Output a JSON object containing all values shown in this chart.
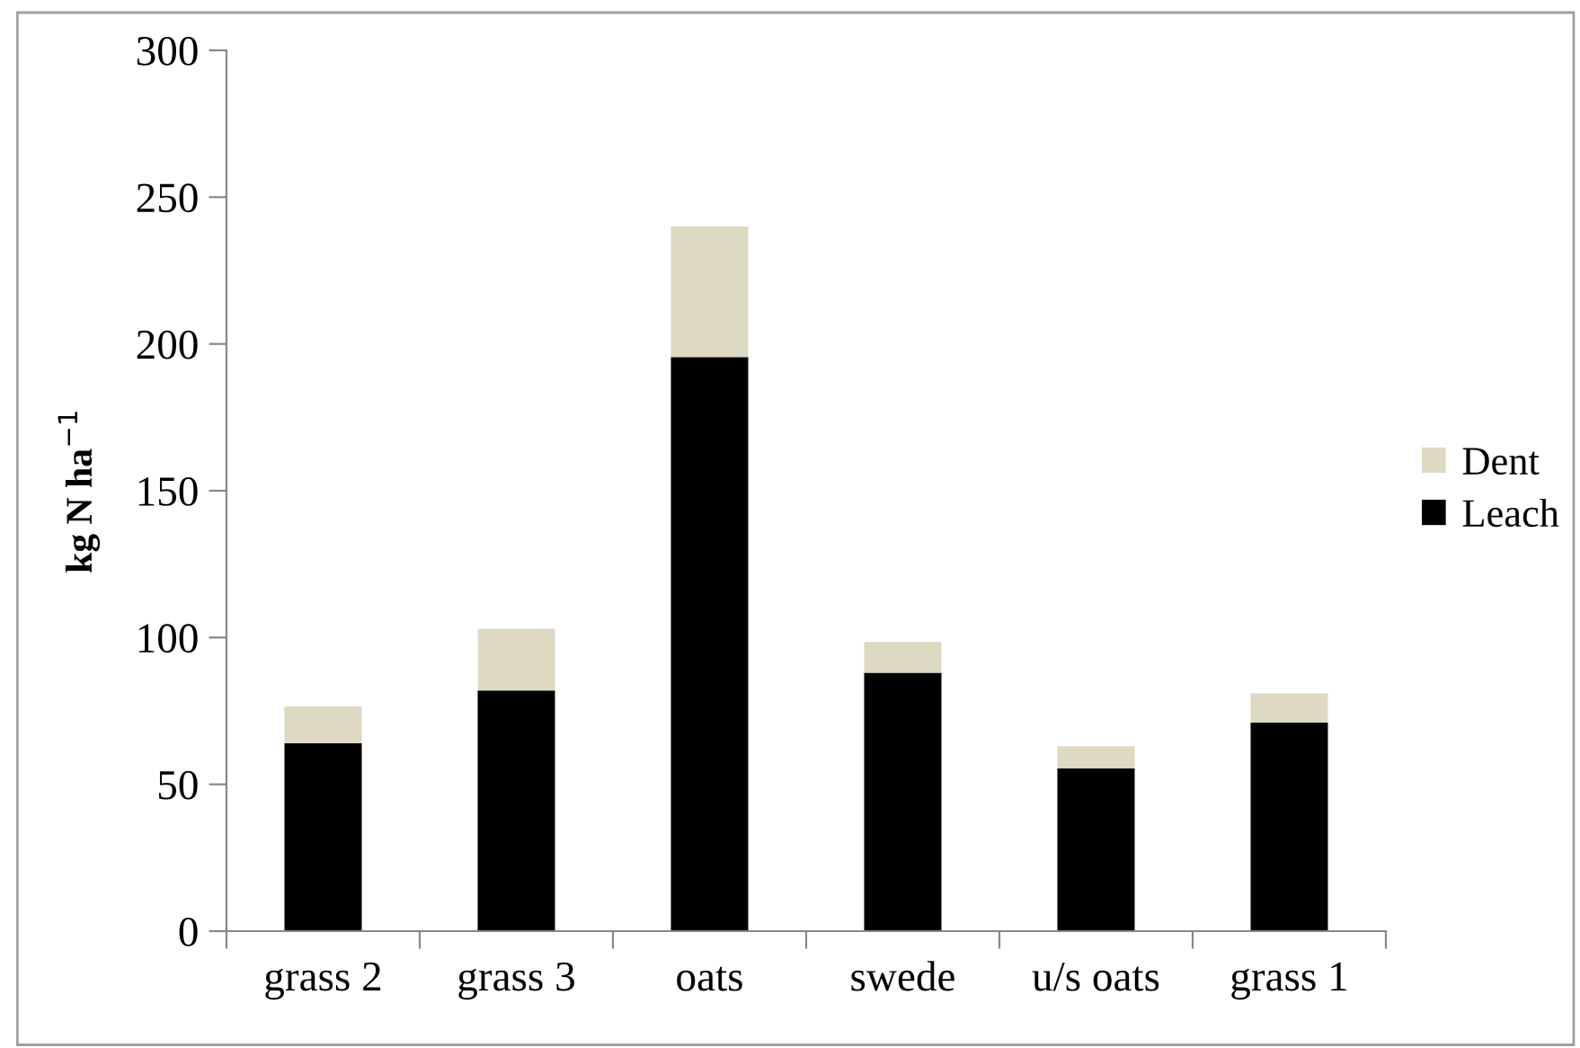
{
  "chart_data": {
    "type": "bar",
    "stacked": true,
    "ylabel": "kg N ha$^{−1}$",
    "categories": [
      "grass 2",
      "grass 3",
      "oats",
      "swede",
      "u/s oats",
      "grass 1"
    ],
    "series": [
      {
        "name": "Leach",
        "color": "#000000",
        "values": [
          64,
          82,
          195.5,
          88,
          55.5,
          71
        ]
      },
      {
        "name": "Dent",
        "color": "#ddd9c3",
        "values": [
          12.5,
          21,
          44.5,
          10.5,
          7.5,
          10
        ]
      }
    ],
    "ylim": [
      0,
      300
    ],
    "yticks": [
      0,
      50,
      100,
      150,
      200,
      250,
      300
    ],
    "grid": false,
    "legend": "right"
  }
}
